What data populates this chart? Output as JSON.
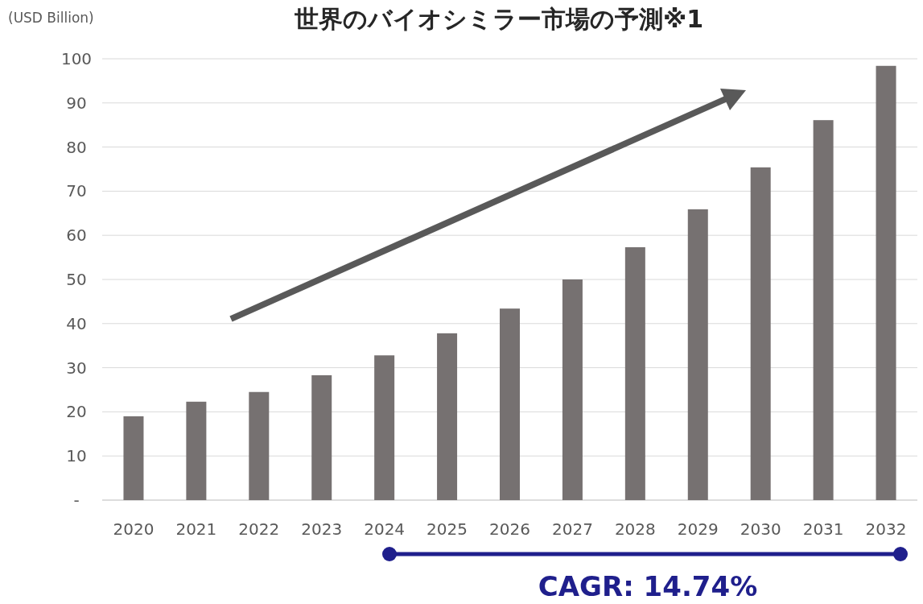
{
  "chart_data": {
    "type": "bar",
    "title": "世界のバイオシミラー市場の予測※1",
    "ylabel": "(USD Billion)",
    "categories": [
      "2020",
      "2021",
      "2022",
      "2023",
      "2024",
      "2025",
      "2026",
      "2027",
      "2028",
      "2029",
      "2030",
      "2031",
      "2032"
    ],
    "values": [
      19.0,
      22.3,
      24.5,
      28.3,
      32.8,
      37.8,
      43.4,
      50.0,
      57.3,
      65.9,
      75.4,
      86.1,
      98.4
    ],
    "color": "#767171",
    "ylim": [
      0,
      100
    ],
    "yticks": [
      {
        "value": 0,
        "label": "-"
      },
      10,
      20,
      30,
      40,
      50,
      60,
      70,
      80,
      90,
      100
    ],
    "grid": "y",
    "annotations": [
      "CAGR: 14.74%"
    ]
  }
}
